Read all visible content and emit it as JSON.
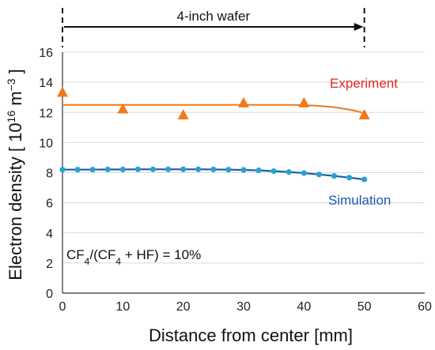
{
  "chart_data": {
    "type": "scatter",
    "xlabel": "Distance from center [mm]",
    "ylabel": {
      "main": "Electron density [ 10",
      "exp": "16",
      "unit": " m",
      "unit_exp": "−3",
      "close": " ]"
    },
    "xlim": [
      0,
      60
    ],
    "ylim": [
      0,
      16
    ],
    "xticks": [
      0,
      10,
      20,
      30,
      40,
      50,
      60
    ],
    "yticks": [
      0,
      2,
      4,
      6,
      8,
      10,
      12,
      14,
      16
    ],
    "grid": "horizontal",
    "wafer_span": {
      "label": "4-inch wafer",
      "from": 0,
      "to": 50
    },
    "formula": {
      "p1": "CF",
      "s1": "4",
      "p2": "/(CF",
      "s2": "4",
      "p3": " + HF) = 10%"
    },
    "series": [
      {
        "name": "Experiment",
        "color": "#f07a1a",
        "marker": "triangle",
        "points": [
          [
            0,
            13.3
          ],
          [
            10,
            12.2
          ],
          [
            20,
            11.8
          ],
          [
            30,
            12.6
          ],
          [
            40,
            12.6
          ],
          [
            50,
            11.8
          ]
        ],
        "fit": [
          [
            0,
            12.5
          ],
          [
            38,
            12.5
          ],
          [
            42,
            12.45
          ],
          [
            45,
            12.35
          ],
          [
            48,
            12.15
          ],
          [
            50,
            11.95
          ]
        ]
      },
      {
        "name": "Simulation",
        "color": "#2a9fd6",
        "line_color": "#1a5f9e",
        "marker": "circle",
        "points": [
          [
            0,
            8.2
          ],
          [
            2.5,
            8.2
          ],
          [
            5,
            8.2
          ],
          [
            7.5,
            8.21
          ],
          [
            10,
            8.21
          ],
          [
            12.5,
            8.22
          ],
          [
            15,
            8.22
          ],
          [
            17.5,
            8.22
          ],
          [
            20,
            8.22
          ],
          [
            22.5,
            8.22
          ],
          [
            25,
            8.21
          ],
          [
            27.5,
            8.2
          ],
          [
            30,
            8.18
          ],
          [
            32.5,
            8.15
          ],
          [
            35,
            8.1
          ],
          [
            37.5,
            8.04
          ],
          [
            40,
            7.97
          ],
          [
            42.5,
            7.88
          ],
          [
            45,
            7.78
          ],
          [
            47.5,
            7.67
          ],
          [
            50,
            7.55
          ]
        ]
      }
    ],
    "labels_color": {
      "Experiment": "#e8251f",
      "Simulation": "#1f56b5"
    }
  }
}
